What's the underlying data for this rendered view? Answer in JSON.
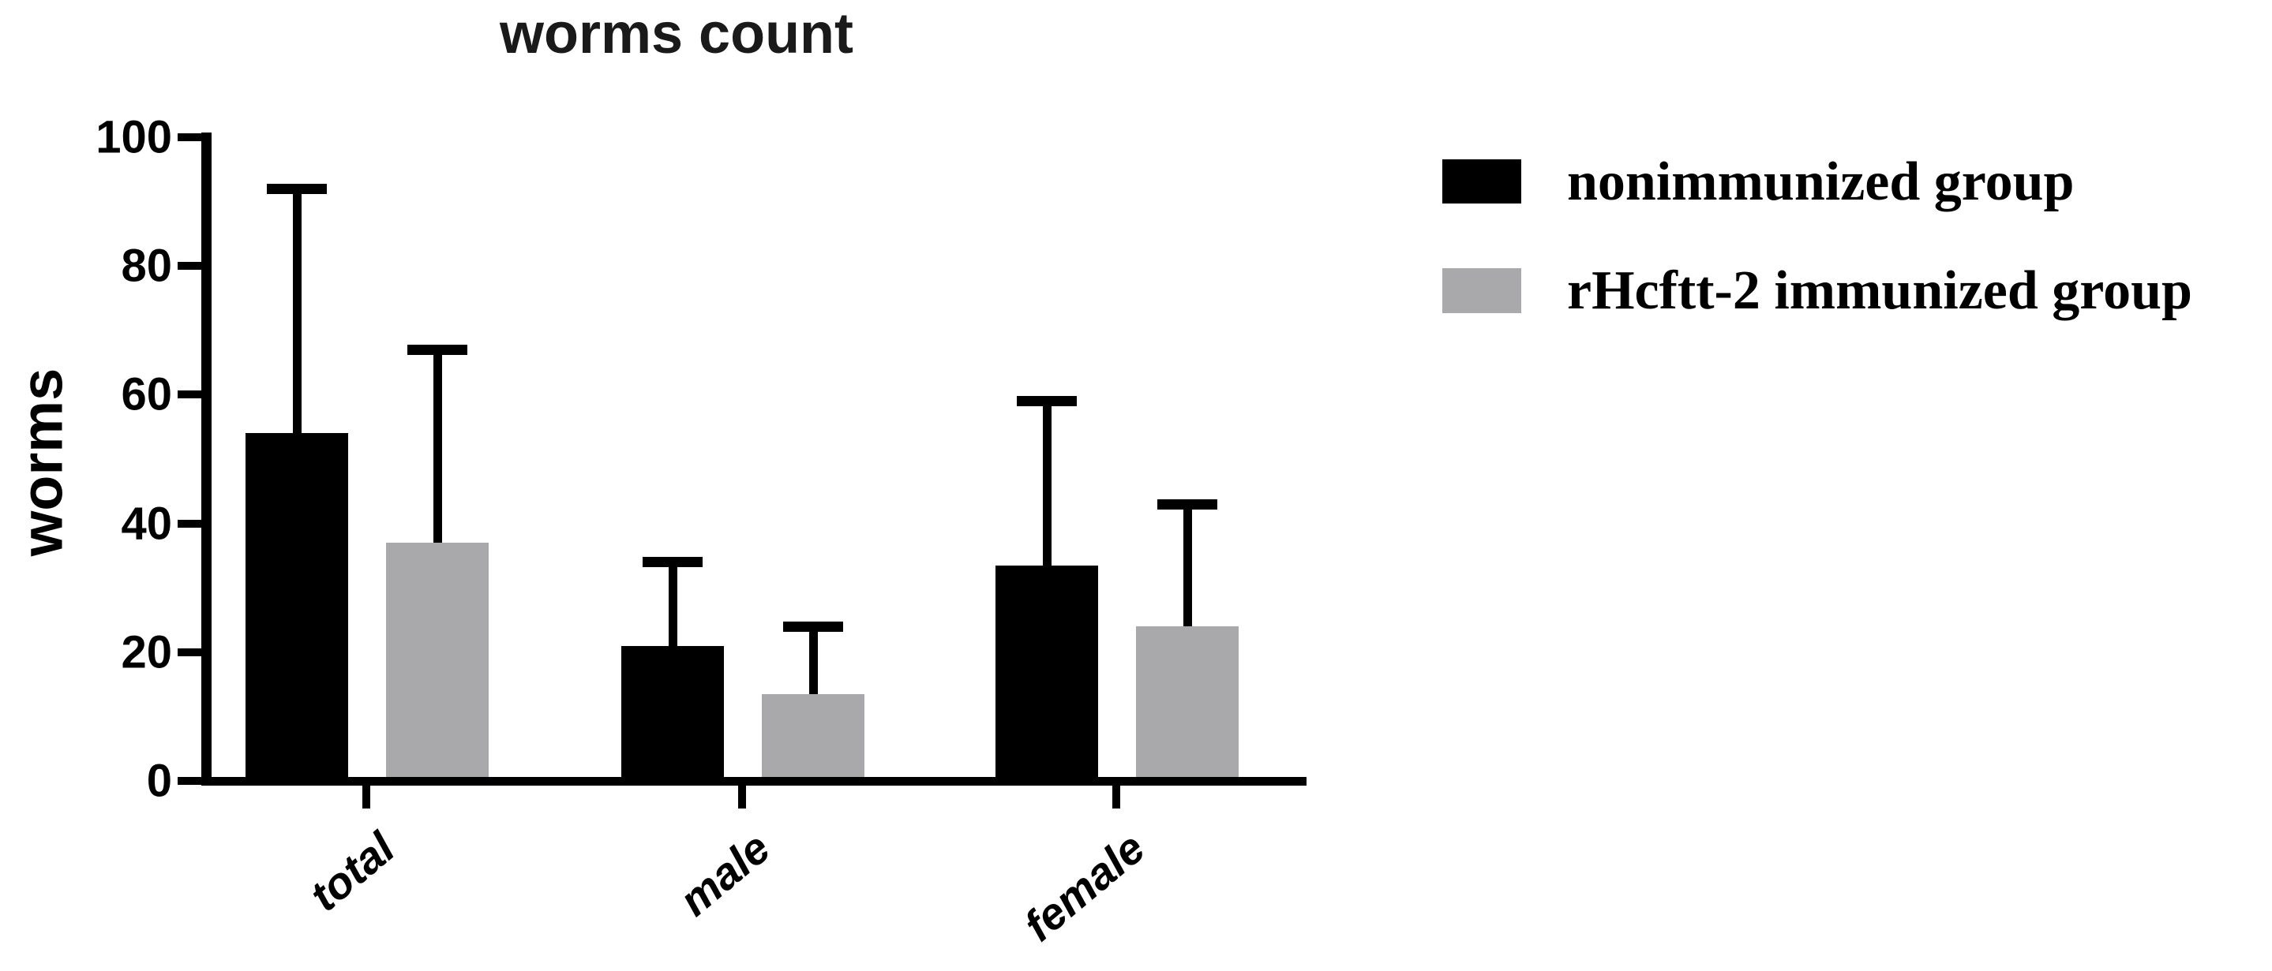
{
  "title": "worms count",
  "y_axis": {
    "label": "worms",
    "tick_labels": [
      "100",
      "80",
      "60",
      "40",
      "20",
      "0"
    ]
  },
  "x_axis": {
    "labels": [
      "total",
      "male",
      "female"
    ]
  },
  "legend": {
    "items": [
      {
        "label": "nonimmunized group",
        "color": "#000000"
      },
      {
        "label": "rHcftt-2 immunized group",
        "color": "#A9A9AB"
      }
    ]
  },
  "chart_data": {
    "type": "bar",
    "title": "worms count",
    "xlabel": "",
    "ylabel": "worms",
    "categories": [
      "total",
      "male",
      "female"
    ],
    "series": [
      {
        "name": "nonimmunized group",
        "color": "#000000",
        "values": [
          54,
          21,
          33.5
        ],
        "error_sd": [
          38,
          13,
          25.5
        ]
      },
      {
        "name": "rHcftt-2 immunized group",
        "color": "#A9A9AB",
        "values": [
          37,
          13.5,
          24
        ],
        "error_sd": [
          30,
          10.5,
          19
        ]
      }
    ],
    "error_bars": "upper only, with caps",
    "ylim": [
      0,
      100
    ],
    "yticks": [
      0,
      20,
      40,
      60,
      80,
      100
    ],
    "grid": false,
    "legend_position": "right of plot, top"
  }
}
